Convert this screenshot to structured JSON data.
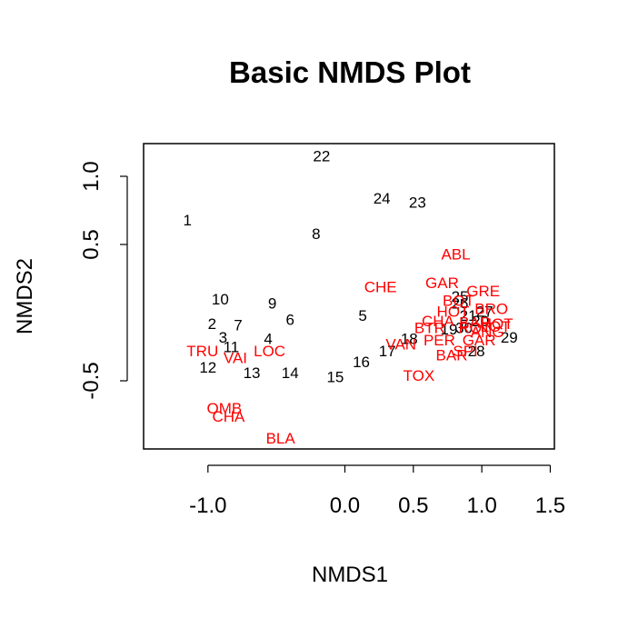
{
  "chart_data": {
    "type": "scatter",
    "title": "Basic NMDS Plot",
    "xlabel": "NMDS1",
    "ylabel": "NMDS2",
    "xlim": [
      -1.47,
      1.53
    ],
    "ylim": [
      -1.0,
      1.24
    ],
    "x_ticks": [
      {
        "value": -1.0,
        "label": "-1.0"
      },
      {
        "value": 0.0,
        "label": "0.0"
      },
      {
        "value": 0.5,
        "label": "0.5"
      },
      {
        "value": 1.0,
        "label": "1.0"
      },
      {
        "value": 1.5,
        "label": "1.5"
      }
    ],
    "y_ticks": [
      {
        "value": -0.5,
        "label": "-0.5"
      },
      {
        "value": 0.5,
        "label": "0.5"
      },
      {
        "value": 1.0,
        "label": "1.0"
      }
    ],
    "colors": {
      "sites": "#000000",
      "species": "#ff0000"
    },
    "series": [
      {
        "points": [
          {
            "label": "1",
            "x": -1.15,
            "y": 0.68
          },
          {
            "label": "2",
            "x": -0.97,
            "y": -0.08
          },
          {
            "label": "3",
            "x": -0.89,
            "y": -0.18
          },
          {
            "label": "4",
            "x": -0.56,
            "y": -0.19
          },
          {
            "label": "5",
            "x": 0.13,
            "y": -0.02
          },
          {
            "label": "6",
            "x": -0.4,
            "y": -0.05
          },
          {
            "label": "7",
            "x": -0.78,
            "y": -0.09
          },
          {
            "label": "8",
            "x": -0.21,
            "y": 0.58
          },
          {
            "label": "9",
            "x": -0.53,
            "y": 0.07
          },
          {
            "label": "10",
            "x": -0.91,
            "y": 0.1
          },
          {
            "label": "11",
            "x": -0.83,
            "y": -0.25
          },
          {
            "label": "12",
            "x": -1.0,
            "y": -0.4
          },
          {
            "label": "13",
            "x": -0.68,
            "y": -0.44
          },
          {
            "label": "14",
            "x": -0.4,
            "y": -0.44
          },
          {
            "label": "15",
            "x": -0.07,
            "y": -0.47
          },
          {
            "label": "16",
            "x": 0.12,
            "y": -0.36
          },
          {
            "label": "17",
            "x": 0.31,
            "y": -0.28
          },
          {
            "label": "18",
            "x": 0.47,
            "y": -0.19
          },
          {
            "label": "19",
            "x": 0.76,
            "y": -0.12
          },
          {
            "label": "20",
            "x": 0.99,
            "y": -0.06
          },
          {
            "label": "21",
            "x": 0.9,
            "y": -0.02
          },
          {
            "label": "22",
            "x": -0.17,
            "y": 1.15
          },
          {
            "label": "23",
            "x": 0.53,
            "y": 0.81
          },
          {
            "label": "24",
            "x": 0.27,
            "y": 0.84
          },
          {
            "label": "25",
            "x": 0.84,
            "y": 0.12
          },
          {
            "label": "26",
            "x": 0.84,
            "y": 0.07
          },
          {
            "label": "27",
            "x": 1.02,
            "y": 0.01
          },
          {
            "label": "28",
            "x": 0.96,
            "y": -0.28
          },
          {
            "label": "29",
            "x": 1.2,
            "y": -0.18
          },
          {
            "label": "30",
            "x": 0.87,
            "y": -0.11
          }
        ]
      },
      {
        "points": [
          {
            "label": "ABL",
            "x": 0.81,
            "y": 0.43
          },
          {
            "label": "GAR",
            "x": 0.71,
            "y": 0.22
          },
          {
            "label": "GRE",
            "x": 1.01,
            "y": 0.16
          },
          {
            "label": "CHE",
            "x": 0.26,
            "y": 0.19
          },
          {
            "label": "BOT",
            "x": 0.83,
            "y": 0.09
          },
          {
            "label": "BRO",
            "x": 1.07,
            "y": 0.03
          },
          {
            "label": "HOT",
            "x": 0.79,
            "y": 0.01
          },
          {
            "label": "CHA_E",
            "x": 0.68,
            "y": -0.06
          },
          {
            "label": "BAR",
            "x": 0.95,
            "y": -0.07
          },
          {
            "label": "BTR",
            "x": 0.62,
            "y": -0.11
          },
          {
            "label": "VAN",
            "x": 0.41,
            "y": -0.23
          },
          {
            "label": "PER",
            "x": 0.69,
            "y": -0.2
          },
          {
            "label": "GAR_R",
            "x": 0.98,
            "y": -0.2
          },
          {
            "label": "BAR_R",
            "x": 0.78,
            "y": -0.31
          },
          {
            "label": "SPI",
            "x": 0.88,
            "y": -0.28
          },
          {
            "label": "TOX",
            "x": 0.54,
            "y": -0.46
          },
          {
            "label": "LOC",
            "x": -0.55,
            "y": -0.28
          },
          {
            "label": "TRU",
            "x": -1.04,
            "y": -0.28
          },
          {
            "label": "VAI",
            "x": -0.8,
            "y": -0.33
          },
          {
            "label": "OMB",
            "x": -0.88,
            "y": -0.7
          },
          {
            "label": "CHA",
            "x": -0.85,
            "y": -0.76
          },
          {
            "label": "BLA",
            "x": -0.47,
            "y": -0.92
          },
          {
            "label": "ANG",
            "x": 1.04,
            "y": -0.14
          },
          {
            "label": "ROT",
            "x": 0.95,
            "y": -0.11
          },
          {
            "label": "LOT",
            "x": 1.1,
            "y": -0.1
          },
          {
            "label": "HOT_E",
            "x": 1.11,
            "y": -0.08
          }
        ]
      }
    ]
  },
  "display_labels": {
    "CHA_E": "CHA",
    "GAR_R": "GAR",
    "BAR_R": "BAR",
    "HOT_E": "HOT"
  }
}
